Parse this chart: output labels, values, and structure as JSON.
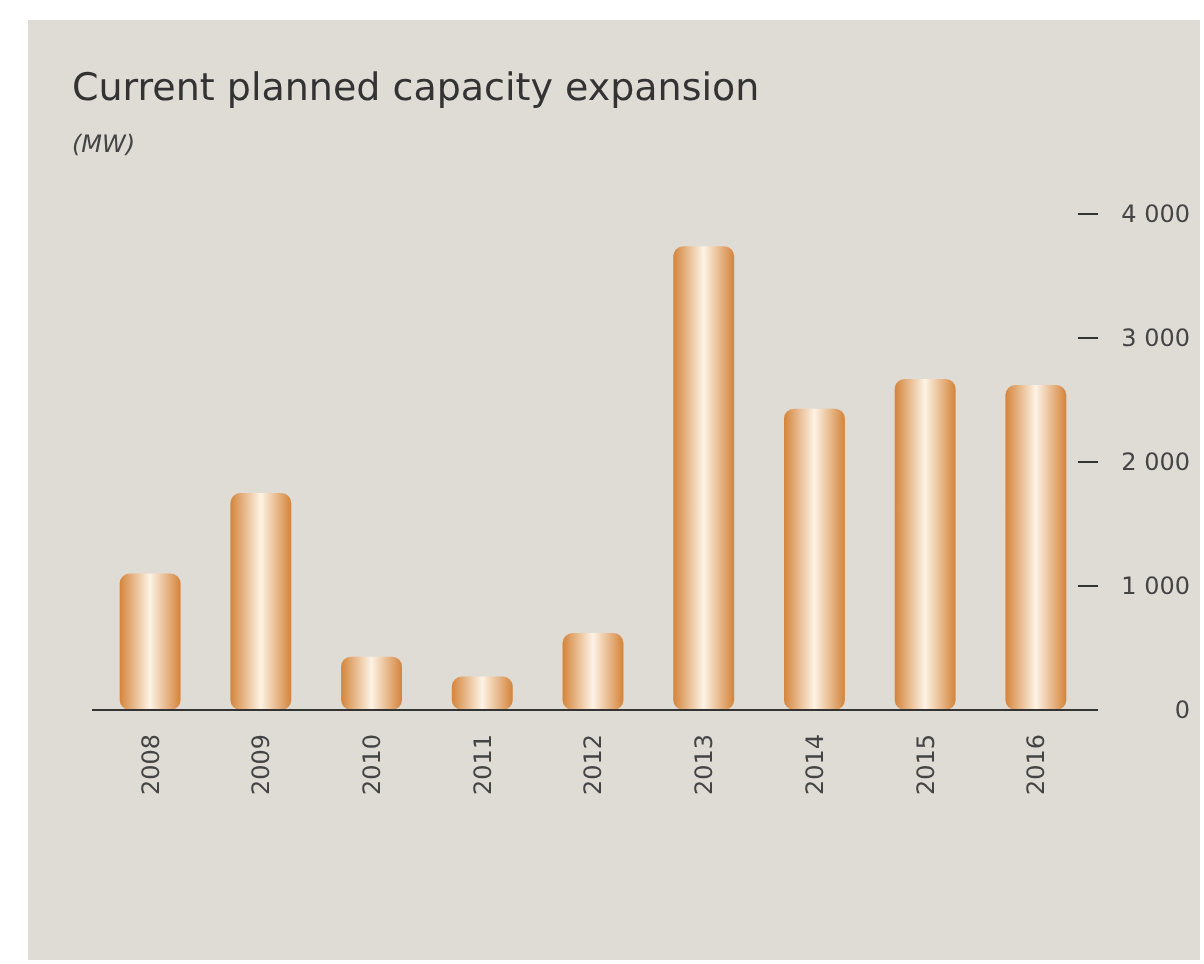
{
  "chart_data": {
    "type": "bar",
    "title": "Current planned capacity expansion",
    "subtitle": "(MW)",
    "categories": [
      "2008",
      "2009",
      "2010",
      "2011",
      "2012",
      "2013",
      "2014",
      "2015",
      "2016"
    ],
    "values": [
      1100,
      1750,
      430,
      270,
      620,
      3740,
      2430,
      2670,
      2620
    ],
    "color": "#d4843a",
    "ylim": [
      0,
      4000
    ],
    "yticks": [
      {
        "value": 0,
        "label": "0"
      },
      {
        "value": 1000,
        "label": "1 000"
      },
      {
        "value": 2000,
        "label": "2 000"
      },
      {
        "value": 3000,
        "label": "3 000"
      },
      {
        "value": 4000,
        "label": "4 000"
      }
    ],
    "grid": false
  }
}
